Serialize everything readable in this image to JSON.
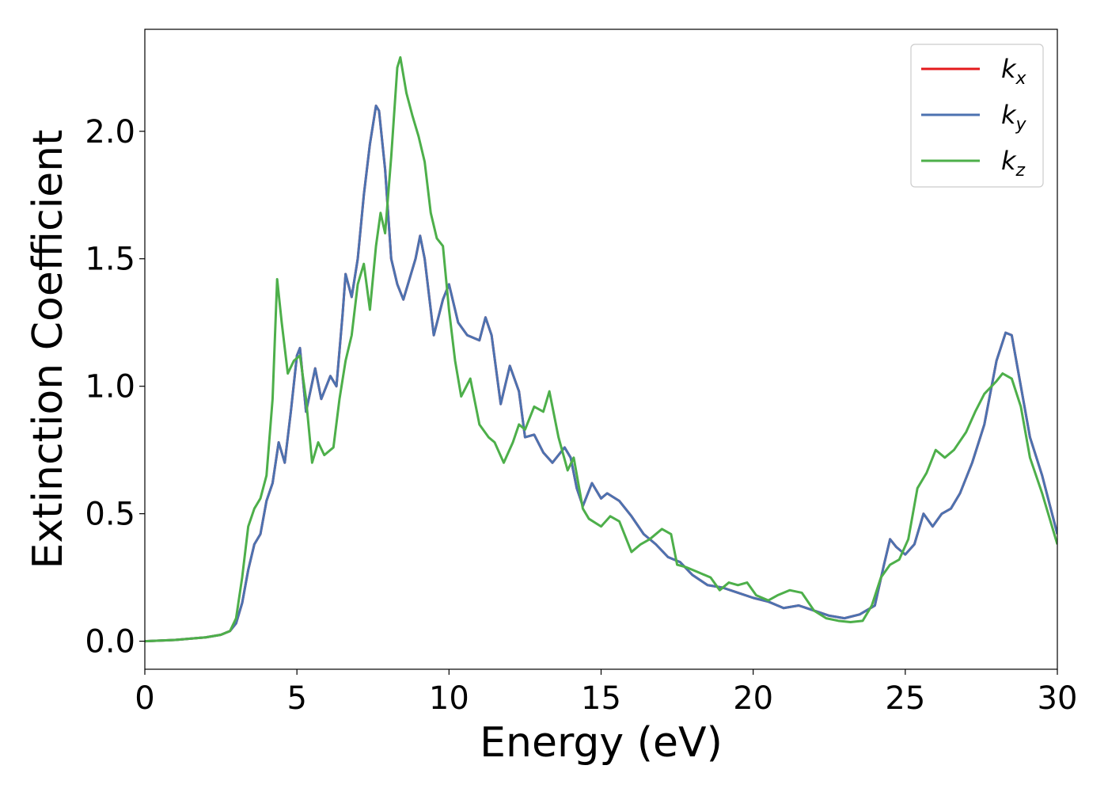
{
  "chart_data": {
    "type": "line",
    "xlabel": "Energy (eV)",
    "ylabel": "Extinction Coefficient",
    "xlim": [
      0,
      30
    ],
    "ylim": [
      -0.11,
      2.4
    ],
    "xticks": [
      0,
      5,
      10,
      15,
      20,
      25,
      30
    ],
    "yticks": [
      0.0,
      0.5,
      1.0,
      1.5,
      2.0
    ],
    "xtick_labels": [
      "0",
      "5",
      "10",
      "15",
      "20",
      "25",
      "30"
    ],
    "ytick_labels": [
      "0.0",
      "0.5",
      "1.0",
      "1.5",
      "2.0"
    ],
    "grid": false,
    "legend_position": "top-right",
    "series": [
      {
        "name": "k",
        "subscript": "x",
        "color": "#e41a1c",
        "points": [
          [
            0,
            0.0
          ],
          [
            1,
            0.005
          ],
          [
            2,
            0.015
          ],
          [
            2.5,
            0.025
          ],
          [
            2.8,
            0.04
          ],
          [
            3.0,
            0.07
          ],
          [
            3.2,
            0.15
          ],
          [
            3.4,
            0.28
          ],
          [
            3.6,
            0.38
          ],
          [
            3.8,
            0.42
          ],
          [
            4.0,
            0.55
          ],
          [
            4.2,
            0.62
          ],
          [
            4.4,
            0.78
          ],
          [
            4.6,
            0.7
          ],
          [
            4.8,
            0.9
          ],
          [
            5.0,
            1.12
          ],
          [
            5.1,
            1.15
          ],
          [
            5.3,
            0.9
          ],
          [
            5.6,
            1.07
          ],
          [
            5.8,
            0.95
          ],
          [
            6.1,
            1.04
          ],
          [
            6.3,
            1.0
          ],
          [
            6.5,
            1.28
          ],
          [
            6.6,
            1.44
          ],
          [
            6.8,
            1.35
          ],
          [
            7.0,
            1.5
          ],
          [
            7.2,
            1.75
          ],
          [
            7.4,
            1.95
          ],
          [
            7.6,
            2.1
          ],
          [
            7.7,
            2.08
          ],
          [
            7.9,
            1.85
          ],
          [
            8.1,
            1.5
          ],
          [
            8.3,
            1.4
          ],
          [
            8.5,
            1.34
          ],
          [
            8.7,
            1.42
          ],
          [
            8.9,
            1.5
          ],
          [
            9.05,
            1.59
          ],
          [
            9.2,
            1.5
          ],
          [
            9.5,
            1.2
          ],
          [
            9.8,
            1.34
          ],
          [
            10.0,
            1.4
          ],
          [
            10.3,
            1.25
          ],
          [
            10.6,
            1.2
          ],
          [
            11.0,
            1.18
          ],
          [
            11.2,
            1.27
          ],
          [
            11.4,
            1.2
          ],
          [
            11.7,
            0.93
          ],
          [
            12.0,
            1.08
          ],
          [
            12.3,
            0.98
          ],
          [
            12.5,
            0.8
          ],
          [
            12.8,
            0.81
          ],
          [
            13.1,
            0.74
          ],
          [
            13.4,
            0.7
          ],
          [
            13.8,
            0.76
          ],
          [
            14.0,
            0.72
          ],
          [
            14.2,
            0.6
          ],
          [
            14.4,
            0.53
          ],
          [
            14.7,
            0.62
          ],
          [
            15.0,
            0.56
          ],
          [
            15.2,
            0.58
          ],
          [
            15.6,
            0.55
          ],
          [
            16.0,
            0.49
          ],
          [
            16.4,
            0.42
          ],
          [
            16.8,
            0.38
          ],
          [
            17.2,
            0.33
          ],
          [
            17.6,
            0.31
          ],
          [
            18.0,
            0.26
          ],
          [
            18.5,
            0.22
          ],
          [
            19.0,
            0.21
          ],
          [
            19.5,
            0.19
          ],
          [
            20.0,
            0.17
          ],
          [
            20.5,
            0.155
          ],
          [
            21.0,
            0.13
          ],
          [
            21.5,
            0.14
          ],
          [
            22.0,
            0.12
          ],
          [
            22.5,
            0.1
          ],
          [
            23.0,
            0.09
          ],
          [
            23.5,
            0.105
          ],
          [
            24.0,
            0.14
          ],
          [
            24.3,
            0.3
          ],
          [
            24.5,
            0.4
          ],
          [
            24.7,
            0.37
          ],
          [
            25.0,
            0.34
          ],
          [
            25.3,
            0.38
          ],
          [
            25.6,
            0.5
          ],
          [
            25.9,
            0.45
          ],
          [
            26.2,
            0.5
          ],
          [
            26.5,
            0.52
          ],
          [
            26.8,
            0.58
          ],
          [
            27.2,
            0.7
          ],
          [
            27.6,
            0.85
          ],
          [
            28.0,
            1.1
          ],
          [
            28.3,
            1.21
          ],
          [
            28.5,
            1.2
          ],
          [
            28.8,
            1.0
          ],
          [
            29.1,
            0.8
          ],
          [
            29.5,
            0.65
          ],
          [
            30.0,
            0.42
          ]
        ]
      },
      {
        "name": "k",
        "subscript": "y",
        "color": "#4c72b0",
        "points": [
          [
            0,
            0.0
          ],
          [
            1,
            0.005
          ],
          [
            2,
            0.015
          ],
          [
            2.5,
            0.025
          ],
          [
            2.8,
            0.04
          ],
          [
            3.0,
            0.07
          ],
          [
            3.2,
            0.15
          ],
          [
            3.4,
            0.28
          ],
          [
            3.6,
            0.38
          ],
          [
            3.8,
            0.42
          ],
          [
            4.0,
            0.55
          ],
          [
            4.2,
            0.62
          ],
          [
            4.4,
            0.78
          ],
          [
            4.6,
            0.7
          ],
          [
            4.8,
            0.9
          ],
          [
            5.0,
            1.12
          ],
          [
            5.1,
            1.15
          ],
          [
            5.3,
            0.9
          ],
          [
            5.6,
            1.07
          ],
          [
            5.8,
            0.95
          ],
          [
            6.1,
            1.04
          ],
          [
            6.3,
            1.0
          ],
          [
            6.5,
            1.28
          ],
          [
            6.6,
            1.44
          ],
          [
            6.8,
            1.35
          ],
          [
            7.0,
            1.5
          ],
          [
            7.2,
            1.75
          ],
          [
            7.4,
            1.95
          ],
          [
            7.6,
            2.1
          ],
          [
            7.7,
            2.08
          ],
          [
            7.9,
            1.85
          ],
          [
            8.1,
            1.5
          ],
          [
            8.3,
            1.4
          ],
          [
            8.5,
            1.34
          ],
          [
            8.7,
            1.42
          ],
          [
            8.9,
            1.5
          ],
          [
            9.05,
            1.59
          ],
          [
            9.2,
            1.5
          ],
          [
            9.5,
            1.2
          ],
          [
            9.8,
            1.34
          ],
          [
            10.0,
            1.4
          ],
          [
            10.3,
            1.25
          ],
          [
            10.6,
            1.2
          ],
          [
            11.0,
            1.18
          ],
          [
            11.2,
            1.27
          ],
          [
            11.4,
            1.2
          ],
          [
            11.7,
            0.93
          ],
          [
            12.0,
            1.08
          ],
          [
            12.3,
            0.98
          ],
          [
            12.5,
            0.8
          ],
          [
            12.8,
            0.81
          ],
          [
            13.1,
            0.74
          ],
          [
            13.4,
            0.7
          ],
          [
            13.8,
            0.76
          ],
          [
            14.0,
            0.72
          ],
          [
            14.2,
            0.6
          ],
          [
            14.4,
            0.53
          ],
          [
            14.7,
            0.62
          ],
          [
            15.0,
            0.56
          ],
          [
            15.2,
            0.58
          ],
          [
            15.6,
            0.55
          ],
          [
            16.0,
            0.49
          ],
          [
            16.4,
            0.42
          ],
          [
            16.8,
            0.38
          ],
          [
            17.2,
            0.33
          ],
          [
            17.6,
            0.31
          ],
          [
            18.0,
            0.26
          ],
          [
            18.5,
            0.22
          ],
          [
            19.0,
            0.21
          ],
          [
            19.5,
            0.19
          ],
          [
            20.0,
            0.17
          ],
          [
            20.5,
            0.155
          ],
          [
            21.0,
            0.13
          ],
          [
            21.5,
            0.14
          ],
          [
            22.0,
            0.12
          ],
          [
            22.5,
            0.1
          ],
          [
            23.0,
            0.09
          ],
          [
            23.5,
            0.105
          ],
          [
            24.0,
            0.14
          ],
          [
            24.3,
            0.3
          ],
          [
            24.5,
            0.4
          ],
          [
            24.7,
            0.37
          ],
          [
            25.0,
            0.34
          ],
          [
            25.3,
            0.38
          ],
          [
            25.6,
            0.5
          ],
          [
            25.9,
            0.45
          ],
          [
            26.2,
            0.5
          ],
          [
            26.5,
            0.52
          ],
          [
            26.8,
            0.58
          ],
          [
            27.2,
            0.7
          ],
          [
            27.6,
            0.85
          ],
          [
            28.0,
            1.1
          ],
          [
            28.3,
            1.21
          ],
          [
            28.5,
            1.2
          ],
          [
            28.8,
            1.0
          ],
          [
            29.1,
            0.8
          ],
          [
            29.5,
            0.65
          ],
          [
            30.0,
            0.42
          ]
        ]
      },
      {
        "name": "k",
        "subscript": "z",
        "color": "#4daf4a",
        "points": [
          [
            0,
            0.0
          ],
          [
            1,
            0.005
          ],
          [
            2,
            0.015
          ],
          [
            2.5,
            0.025
          ],
          [
            2.8,
            0.04
          ],
          [
            3.0,
            0.09
          ],
          [
            3.2,
            0.25
          ],
          [
            3.4,
            0.45
          ],
          [
            3.6,
            0.52
          ],
          [
            3.8,
            0.56
          ],
          [
            4.0,
            0.65
          ],
          [
            4.2,
            0.95
          ],
          [
            4.35,
            1.42
          ],
          [
            4.5,
            1.25
          ],
          [
            4.7,
            1.05
          ],
          [
            4.9,
            1.1
          ],
          [
            5.1,
            1.12
          ],
          [
            5.3,
            0.95
          ],
          [
            5.5,
            0.7
          ],
          [
            5.7,
            0.78
          ],
          [
            5.9,
            0.73
          ],
          [
            6.2,
            0.76
          ],
          [
            6.4,
            0.95
          ],
          [
            6.6,
            1.1
          ],
          [
            6.8,
            1.2
          ],
          [
            7.0,
            1.4
          ],
          [
            7.2,
            1.48
          ],
          [
            7.4,
            1.3
          ],
          [
            7.6,
            1.55
          ],
          [
            7.75,
            1.68
          ],
          [
            7.9,
            1.6
          ],
          [
            8.1,
            1.9
          ],
          [
            8.3,
            2.25
          ],
          [
            8.4,
            2.29
          ],
          [
            8.6,
            2.15
          ],
          [
            8.8,
            2.06
          ],
          [
            9.0,
            1.98
          ],
          [
            9.2,
            1.88
          ],
          [
            9.4,
            1.68
          ],
          [
            9.6,
            1.58
          ],
          [
            9.8,
            1.55
          ],
          [
            10.0,
            1.3
          ],
          [
            10.2,
            1.1
          ],
          [
            10.4,
            0.96
          ],
          [
            10.7,
            1.03
          ],
          [
            11.0,
            0.85
          ],
          [
            11.3,
            0.8
          ],
          [
            11.5,
            0.78
          ],
          [
            11.8,
            0.7
          ],
          [
            12.1,
            0.78
          ],
          [
            12.3,
            0.85
          ],
          [
            12.5,
            0.83
          ],
          [
            12.8,
            0.92
          ],
          [
            13.1,
            0.9
          ],
          [
            13.3,
            0.98
          ],
          [
            13.6,
            0.8
          ],
          [
            13.9,
            0.67
          ],
          [
            14.1,
            0.72
          ],
          [
            14.4,
            0.52
          ],
          [
            14.6,
            0.48
          ],
          [
            15.0,
            0.45
          ],
          [
            15.3,
            0.49
          ],
          [
            15.6,
            0.47
          ],
          [
            16.0,
            0.35
          ],
          [
            16.3,
            0.38
          ],
          [
            16.6,
            0.4
          ],
          [
            17.0,
            0.44
          ],
          [
            17.3,
            0.42
          ],
          [
            17.5,
            0.3
          ],
          [
            17.8,
            0.29
          ],
          [
            18.2,
            0.27
          ],
          [
            18.6,
            0.25
          ],
          [
            18.9,
            0.2
          ],
          [
            19.2,
            0.23
          ],
          [
            19.5,
            0.22
          ],
          [
            19.8,
            0.23
          ],
          [
            20.1,
            0.18
          ],
          [
            20.5,
            0.16
          ],
          [
            20.8,
            0.18
          ],
          [
            21.2,
            0.2
          ],
          [
            21.6,
            0.19
          ],
          [
            22.0,
            0.12
          ],
          [
            22.4,
            0.09
          ],
          [
            22.8,
            0.08
          ],
          [
            23.2,
            0.075
          ],
          [
            23.6,
            0.08
          ],
          [
            23.9,
            0.14
          ],
          [
            24.2,
            0.25
          ],
          [
            24.5,
            0.3
          ],
          [
            24.8,
            0.32
          ],
          [
            25.1,
            0.4
          ],
          [
            25.4,
            0.6
          ],
          [
            25.7,
            0.66
          ],
          [
            26.0,
            0.75
          ],
          [
            26.3,
            0.72
          ],
          [
            26.6,
            0.75
          ],
          [
            27.0,
            0.82
          ],
          [
            27.3,
            0.9
          ],
          [
            27.6,
            0.97
          ],
          [
            28.0,
            1.02
          ],
          [
            28.2,
            1.05
          ],
          [
            28.5,
            1.03
          ],
          [
            28.8,
            0.92
          ],
          [
            29.1,
            0.72
          ],
          [
            29.5,
            0.58
          ],
          [
            30.0,
            0.38
          ]
        ]
      }
    ]
  }
}
